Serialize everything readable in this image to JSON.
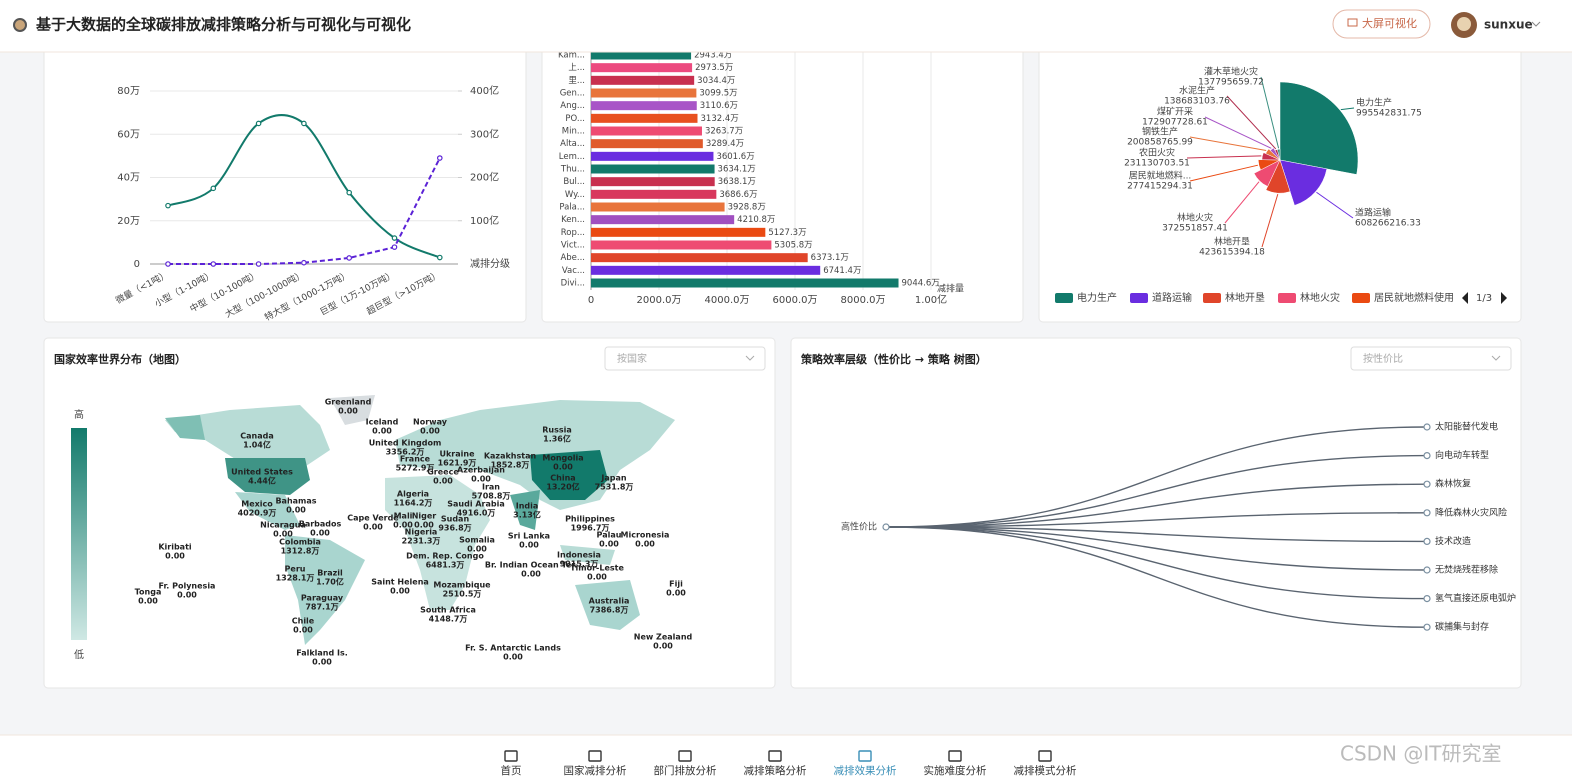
{
  "header": {
    "title": "基于大数据的全球碳排放减排策略分析与可视化与可视化",
    "button": "大屏可视化",
    "user": "sunxue"
  },
  "line_chart": {
    "type": "line",
    "categories": [
      "微量（<1吨）",
      "小型（1-10吨）",
      "中型（10-100吨）",
      "大型（100-1000吨）",
      "特大型（1000-1万吨）",
      "巨型（1万-10万吨）",
      "超巨型（>10万吨）"
    ],
    "x_label": "减排分级",
    "ylim": [
      0,
      800000
    ],
    "yticks": [
      0,
      {
        "value": 200000,
        "label": "20万"
      },
      {
        "value": 400000,
        "label": "40万"
      },
      {
        "value": 600000,
        "label": "60万"
      },
      {
        "value": 800000,
        "label": "80万"
      }
    ],
    "y2lim": [
      0,
      40000000000
    ],
    "y2ticks": [
      {
        "value": 10000000000,
        "label": "100亿"
      },
      {
        "value": 20000000000,
        "label": "200亿"
      },
      {
        "value": 30000000000,
        "label": "300亿"
      },
      {
        "value": 40000000000,
        "label": "400亿"
      }
    ],
    "grid": true,
    "series": [
      {
        "color": "#127a6b",
        "smooth": true,
        "values": [
          270000,
          350000,
          650000,
          650000,
          330000,
          120000,
          30000
        ]
      },
      {
        "color": "#5b22d6",
        "axis": "y2",
        "dashed": true,
        "values": [
          0,
          0,
          0,
          300000000,
          1400000000,
          3900000000,
          24500000000
        ]
      }
    ]
  },
  "bar_chart": {
    "type": "bar",
    "orientation": "horizontal",
    "categories": [
      "Kam...",
      "上...",
      "里...",
      "Gen...",
      "Ang...",
      "PO...",
      "Min...",
      "Alta...",
      "Lem...",
      "Thu...",
      "Bul...",
      "Wy...",
      "Pala...",
      "Ken...",
      "Rop...",
      "Vict...",
      "Abe...",
      "Vac...",
      "Divi..."
    ],
    "values": [
      29434000,
      29735000,
      30344000,
      30995000,
      31106000,
      31324000,
      32637000,
      32894000,
      36016000,
      36341000,
      36381000,
      36866000,
      39288000,
      42108000,
      51273000,
      53058000,
      63731000,
      67414000,
      90446000
    ],
    "value_labels": [
      "2943.4万",
      "2973.5万",
      "3034.4万",
      "3099.5万",
      "3110.6万",
      "3132.4万",
      "3263.7万",
      "3289.4万",
      "3601.6万",
      "3634.1万",
      "3638.1万",
      "3686.6万",
      "3928.8万",
      "4210.8万",
      "5127.3万",
      "5305.8万",
      "6373.1万",
      "6741.4万",
      "9044.6万"
    ],
    "colors": [
      "#127a6b",
      "#ec4a7f",
      "#c8304f",
      "#e8743b",
      "#a855c7",
      "#e8501f",
      "#ee4b72",
      "#e05a2b",
      "#6a2de0",
      "#127a6b",
      "#c8304f",
      "#d8375d",
      "#e8743b",
      "#a04fc0",
      "#ea4a12",
      "#ee4b72",
      "#e0452a",
      "#6a2de0",
      "#127a6b"
    ],
    "x_label": "减排量",
    "xlim": [
      0,
      100000000
    ],
    "xticks": [
      0,
      {
        "value": 20000000,
        "label": "2000.0万"
      },
      {
        "value": 40000000,
        "label": "4000.0万"
      },
      {
        "value": 60000000,
        "label": "6000.0万"
      },
      {
        "value": 80000000,
        "label": "8000.0万"
      },
      {
        "value": 100000000,
        "label": "1.00亿"
      }
    ],
    "grid": true
  },
  "pie_chart": {
    "type": "pie",
    "rose": true,
    "categories": [
      "电力生产",
      "道路运输",
      "林地开垦",
      "林地火灾",
      "居民就地燃料...",
      "农田火灾",
      "钢铁生产",
      "煤矿开采",
      "水泥生产",
      "灌木草地火灾"
    ],
    "values": [
      995542831.75,
      608266216.33,
      423615394.18,
      372551857.41,
      277415294.31,
      231130703.51,
      200858765.99,
      172907728.61,
      138683103.76,
      137795659.72
    ],
    "colors": [
      "#127a6b",
      "#6a2de0",
      "#e0452a",
      "#ee4b72",
      "#ea4a12",
      "#c8304f",
      "#e8743b",
      "#a855c7",
      "#b02e4e",
      "#3a8f80"
    ],
    "legend": {
      "items": [
        "电力生产",
        "道路运输",
        "林地开垦",
        "林地火灾",
        "居民就地燃料使用"
      ],
      "page": "1/3"
    }
  },
  "map": {
    "title": "国家效率世界分布（地图）",
    "selector": "按国家",
    "visual_map": {
      "high": "高",
      "low": "低"
    },
    "countries": [
      {
        "name": "Greenland",
        "value": "0.00"
      },
      {
        "name": "Iceland",
        "value": "0.00"
      },
      {
        "name": "Norway",
        "value": "0.00"
      },
      {
        "name": "Russia",
        "value": "1.36亿"
      },
      {
        "name": "Canada",
        "value": "1.04亿"
      },
      {
        "name": "United Kingdom",
        "value": "3356.2万"
      },
      {
        "name": "France",
        "value": "5272.9万"
      },
      {
        "name": "Ukraine",
        "value": "1621.9万"
      },
      {
        "name": "Kazakhstan",
        "value": "1852.8万"
      },
      {
        "name": "Mongolia",
        "value": "0.00"
      },
      {
        "name": "Greece",
        "value": "0.00"
      },
      {
        "name": "Azerbaijan",
        "value": "0.00"
      },
      {
        "name": "United States",
        "value": "4.44亿"
      },
      {
        "name": "Iran",
        "value": "5708.8万"
      },
      {
        "name": "China",
        "value": "13.20亿"
      },
      {
        "name": "Japan",
        "value": "7531.8万"
      },
      {
        "name": "Algeria",
        "value": "1164.2万"
      },
      {
        "name": "Saudi Arabia",
        "value": "4916.0万"
      },
      {
        "name": "Bahamas",
        "value": "0.00"
      },
      {
        "name": "Mexico",
        "value": "4020.9万"
      },
      {
        "name": "India",
        "value": "3.13亿"
      },
      {
        "name": "Cape Verde",
        "value": "0.00"
      },
      {
        "name": "Mali",
        "value": "0.00"
      },
      {
        "name": "Niger",
        "value": "0.00"
      },
      {
        "name": "Sudan",
        "value": "936.8万"
      },
      {
        "name": "Nigeria",
        "value": "2231.3万"
      },
      {
        "name": "Philippines",
        "value": "1996.7万"
      },
      {
        "name": "Nicaragua",
        "value": "0.00"
      },
      {
        "name": "Barbados",
        "value": "0.00"
      },
      {
        "name": "Palau",
        "value": "0.00"
      },
      {
        "name": "Micronesia",
        "value": "0.00"
      },
      {
        "name": "Kiribati",
        "value": "0.00"
      },
      {
        "name": "Colombia",
        "value": "1312.8万"
      },
      {
        "name": "Somalia",
        "value": "0.00"
      },
      {
        "name": "Sri Lanka",
        "value": "0.00"
      },
      {
        "name": "Dem. Rep. Congo",
        "value": "6481.3万"
      },
      {
        "name": "Br. Indian Ocean Ter.",
        "value": "0.00"
      },
      {
        "name": "Indonesia",
        "value": "9015.3万"
      },
      {
        "name": "Timor-Leste",
        "value": "0.00"
      },
      {
        "name": "Peru",
        "value": "1328.1万"
      },
      {
        "name": "Brazil",
        "value": "1.70亿"
      },
      {
        "name": "Fr. Polynesia",
        "value": "0.00"
      },
      {
        "name": "Tonga",
        "value": "0.00"
      },
      {
        "name": "Saint Helena",
        "value": "0.00"
      },
      {
        "name": "Mozambique",
        "value": "2510.5万"
      },
      {
        "name": "Fiji",
        "value": "0.00"
      },
      {
        "name": "Paraguay",
        "value": "787.1万"
      },
      {
        "name": "Australia",
        "value": "7386.8万"
      },
      {
        "name": "South Africa",
        "value": "4148.7万"
      },
      {
        "name": "Chile",
        "value": "0.00"
      },
      {
        "name": "New Zealand",
        "value": "0.00"
      },
      {
        "name": "Fr. S. Antarctic Lands",
        "value": "0.00"
      },
      {
        "name": "Falkland Is.",
        "value": "0.00"
      }
    ]
  },
  "tree": {
    "title": "策略效率层级（性价比 → 策略 树图）",
    "selector": "按性价比",
    "root": "高性价比",
    "leaves": [
      "太阳能替代发电",
      "向电动车转型",
      "森林恢复",
      "降低森林火灾风险",
      "技术改造",
      "无焚烧残茬移除",
      "氢气直接还原电弧炉",
      "碳捕集与封存"
    ]
  },
  "nav": {
    "items": [
      "首页",
      "国家减排分析",
      "部门排放分析",
      "减排策略分析",
      "减排效果分析",
      "实施难度分析",
      "减排模式分析"
    ],
    "active": 4
  },
  "watermark": "CSDN @IT研究室"
}
